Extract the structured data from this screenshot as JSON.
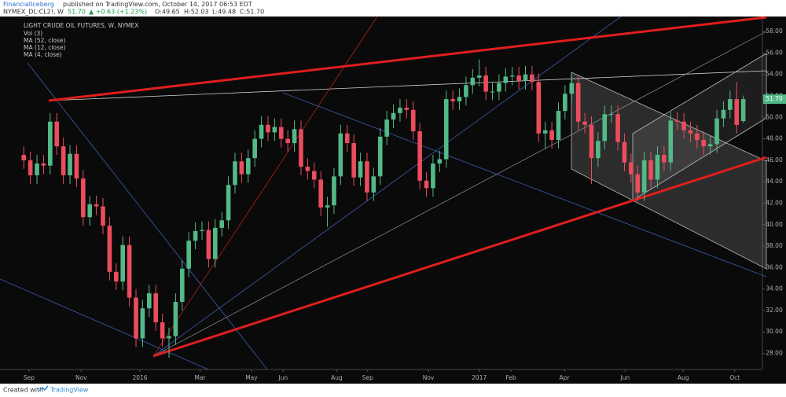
{
  "header": {
    "author": "FinancialIceberg",
    "published": "published on TradingView.com, October 14, 2017 06:53 EDT",
    "symbol": "NYMEX_DL:CL2!, W",
    "last": "51.70",
    "change": "▲ +0.63 (+1.23%)",
    "open": "O:49.65",
    "high": "H:52.03",
    "low": "L:49.48",
    "close": "C:51.70"
  },
  "chart_data": {
    "type": "candlestick",
    "title": "LIGHT CRUDE OIL FUTURES, W, NYMEX",
    "indicators": [
      "Vol (3)",
      "MA (52, close)",
      "MA (12, close)",
      "MA (4, close)"
    ],
    "open": [
      46.5,
      46.0,
      44.6,
      45.7,
      45.5,
      49.6,
      47.3,
      44.6,
      46.6,
      44.3,
      40.7,
      41.9,
      41.7,
      39.9,
      35.6,
      34.7,
      38.1,
      33.2,
      29.4,
      32.2,
      33.6,
      30.9,
      29.4,
      29.6,
      32.8,
      35.9,
      38.5,
      39.4,
      39.5,
      36.8,
      39.7,
      40.4,
      43.7,
      45.9,
      44.7,
      46.2,
      48.0,
      49.3,
      48.6,
      49.1,
      48.0,
      47.6,
      48.9,
      45.4,
      45.0,
      44.2,
      41.6,
      41.8,
      44.5,
      48.5,
      47.6,
      44.4,
      45.9,
      43.0,
      44.5,
      48.2,
      49.8,
      50.4,
      50.9,
      50.7,
      48.7,
      44.1,
      43.4,
      45.7,
      46.1,
      51.7,
      51.5,
      51.9,
      53.0,
      53.7,
      53.9,
      52.4,
      52.4,
      53.2,
      53.8,
      53.9,
      53.4,
      54.0,
      53.3,
      48.5,
      48.8,
      47.9,
      50.6,
      52.2,
      53.2,
      49.6,
      49.3,
      46.2,
      47.8,
      50.3,
      50.3,
      47.7,
      45.8,
      44.7,
      43.0,
      46.0,
      44.2,
      46.5,
      45.8,
      49.7,
      49.6,
      48.8,
      48.5,
      47.9,
      47.3,
      47.5,
      49.9,
      50.7,
      51.7,
      49.65
    ],
    "high": [
      47.3,
      46.8,
      46.5,
      46.5,
      50.4,
      50.4,
      48.1,
      47.4,
      47.4,
      45.1,
      42.7,
      42.7,
      42.5,
      40.7,
      36.4,
      38.9,
      38.9,
      34.0,
      33.0,
      34.4,
      34.4,
      31.7,
      30.4,
      33.6,
      36.7,
      39.3,
      40.2,
      40.3,
      40.3,
      40.5,
      41.2,
      44.5,
      46.7,
      46.7,
      47.0,
      48.8,
      50.1,
      50.1,
      49.9,
      49.9,
      48.8,
      49.7,
      49.7,
      46.2,
      45.8,
      45.0,
      42.6,
      45.3,
      49.3,
      49.3,
      48.4,
      46.7,
      46.7,
      45.3,
      49.0,
      50.6,
      51.2,
      51.7,
      51.7,
      51.5,
      49.5,
      44.9,
      46.5,
      46.9,
      52.5,
      52.5,
      52.7,
      53.8,
      54.5,
      55.4,
      54.7,
      53.2,
      54.0,
      54.6,
      54.7,
      54.7,
      54.8,
      54.8,
      54.1,
      49.6,
      49.6,
      51.4,
      53.0,
      54.0,
      54.0,
      50.4,
      50.1,
      48.6,
      51.1,
      51.1,
      51.1,
      48.5,
      46.6,
      45.5,
      46.8,
      46.8,
      47.3,
      47.3,
      50.5,
      50.5,
      50.4,
      49.6,
      49.3,
      48.7,
      48.3,
      50.7,
      51.5,
      52.5,
      53.3,
      52.03
    ],
    "low": [
      45.2,
      43.8,
      43.8,
      44.7,
      44.7,
      46.5,
      43.8,
      43.8,
      43.5,
      39.9,
      39.9,
      40.9,
      39.1,
      34.8,
      33.9,
      33.9,
      32.4,
      28.6,
      28.6,
      31.4,
      30.1,
      28.6,
      27.6,
      28.8,
      32.0,
      35.1,
      37.7,
      38.6,
      36.0,
      36.0,
      38.9,
      39.6,
      42.9,
      43.9,
      43.9,
      45.4,
      47.2,
      47.8,
      47.8,
      47.2,
      46.8,
      46.8,
      44.6,
      44.2,
      43.4,
      40.8,
      39.8,
      41.0,
      43.7,
      46.8,
      43.6,
      43.6,
      42.2,
      42.2,
      43.7,
      47.4,
      49.0,
      49.6,
      49.9,
      47.9,
      43.3,
      42.6,
      42.6,
      44.9,
      45.3,
      50.7,
      50.7,
      51.1,
      52.2,
      52.9,
      51.6,
      51.6,
      51.6,
      52.4,
      53.0,
      52.6,
      52.6,
      52.5,
      47.7,
      47.1,
      47.1,
      47.1,
      49.8,
      51.4,
      48.8,
      48.5,
      43.8,
      45.4,
      47.0,
      49.5,
      46.9,
      45.0,
      43.9,
      42.2,
      42.2,
      43.4,
      43.4,
      45.0,
      45.0,
      48.8,
      48.0,
      47.7,
      47.1,
      46.5,
      46.5,
      46.7,
      49.1,
      49.9,
      48.5,
      49.48
    ],
    "close": [
      46.0,
      44.6,
      45.7,
      45.5,
      49.6,
      47.3,
      44.6,
      46.6,
      44.3,
      40.7,
      41.9,
      41.7,
      39.9,
      35.6,
      34.7,
      38.1,
      33.2,
      29.4,
      32.2,
      33.6,
      30.9,
      29.4,
      29.6,
      32.8,
      35.9,
      38.5,
      39.4,
      39.5,
      36.8,
      39.7,
      40.4,
      43.7,
      45.9,
      44.7,
      46.2,
      48.0,
      49.3,
      48.6,
      49.1,
      48.0,
      47.6,
      48.9,
      45.4,
      45.0,
      44.2,
      41.6,
      41.8,
      44.5,
      48.5,
      47.6,
      44.4,
      45.9,
      43.0,
      44.5,
      48.2,
      49.8,
      50.4,
      50.9,
      50.7,
      48.7,
      44.1,
      43.4,
      45.7,
      46.1,
      51.7,
      51.5,
      51.9,
      53.0,
      53.7,
      53.9,
      52.4,
      52.4,
      53.2,
      53.8,
      53.9,
      53.4,
      54.0,
      53.3,
      48.5,
      48.8,
      47.9,
      50.6,
      52.2,
      53.2,
      49.6,
      49.3,
      46.2,
      47.8,
      50.3,
      50.3,
      47.7,
      45.8,
      44.7,
      43.0,
      46.0,
      44.2,
      46.5,
      45.8,
      49.7,
      49.6,
      48.8,
      48.5,
      47.9,
      47.3,
      47.5,
      49.9,
      50.7,
      51.7,
      49.3,
      51.7
    ],
    "up_color": "#53b987",
    "down_color": "#eb4d5c",
    "xlim": [
      -3.6,
      111.9
    ],
    "xticks": [
      {
        "value": 0.8,
        "label": "Sep"
      },
      {
        "value": 8.7,
        "label": "Nov"
      },
      {
        "value": 17.6,
        "label": "2016"
      },
      {
        "value": 26.7,
        "label": "Mar"
      },
      {
        "value": 34.5,
        "label": "May"
      },
      {
        "value": 39.3,
        "label": "Jun"
      },
      {
        "value": 47.4,
        "label": "Aug"
      },
      {
        "value": 52.1,
        "label": "Sep"
      },
      {
        "value": 61.3,
        "label": "Nov"
      },
      {
        "value": 69.0,
        "label": "2017"
      },
      {
        "value": 73.8,
        "label": "Feb"
      },
      {
        "value": 81.9,
        "label": "Apr"
      },
      {
        "value": 91.1,
        "label": "Jun"
      },
      {
        "value": 99.9,
        "label": "Aug"
      },
      {
        "value": 107.7,
        "label": "Oct"
      }
    ],
    "ylim": [
      26.5,
      59.4
    ],
    "yticks": [
      {
        "value": 28,
        "label": "28.00"
      },
      {
        "value": 30,
        "label": "30.00"
      },
      {
        "value": 32,
        "label": "32.00"
      },
      {
        "value": 34,
        "label": "34.00"
      },
      {
        "value": 36,
        "label": "36.00"
      },
      {
        "value": 38,
        "label": "38.00"
      },
      {
        "value": 40,
        "label": "40.00"
      },
      {
        "value": 42,
        "label": "42.00"
      },
      {
        "value": 44,
        "label": "44.00"
      },
      {
        "value": 46,
        "label": "46.00"
      },
      {
        "value": 48,
        "label": "48.00"
      },
      {
        "value": 50,
        "label": "50.00"
      },
      {
        "value": 52,
        "label": "52.00"
      },
      {
        "value": 54,
        "label": "54.00"
      },
      {
        "value": 56,
        "label": "56.00"
      },
      {
        "value": 58,
        "label": "58.00"
      }
    ],
    "price_tag": {
      "value": 51.7,
      "label": "51.70"
    }
  },
  "footer": {
    "created": "Created with",
    "brand": "TradingView"
  }
}
